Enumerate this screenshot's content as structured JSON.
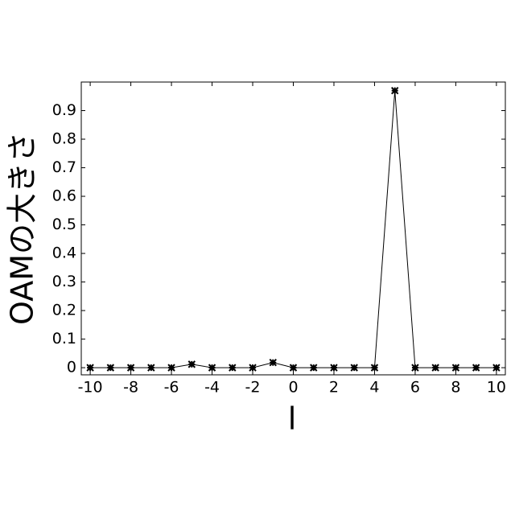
{
  "chart_data": {
    "type": "line",
    "x_label": "l",
    "y_label": "OAMの大きさ",
    "x": [
      -10,
      -9,
      -8,
      -7,
      -6,
      -5,
      -4,
      -3,
      -2,
      -1,
      0,
      1,
      2,
      3,
      4,
      5,
      6,
      7,
      8,
      9,
      10
    ],
    "series": [
      {
        "color": "#000000",
        "values": [
          0,
          0,
          0,
          0,
          0,
          0.012,
          0,
          0,
          0,
          0.018,
          0,
          0,
          0,
          0,
          0,
          0.97,
          0,
          0,
          0,
          0,
          0
        ]
      }
    ],
    "xlim": [
      -10.44,
      10.44
    ],
    "ylim": [
      -0.025,
      1.0
    ],
    "xticks": [
      -10,
      -8,
      -6,
      -4,
      -2,
      0,
      2,
      4,
      6,
      8,
      10
    ],
    "yticks": [
      0,
      0.1,
      0.2,
      0.3,
      0.4,
      0.5,
      0.6,
      0.7,
      0.8,
      0.9
    ],
    "grid": false
  }
}
